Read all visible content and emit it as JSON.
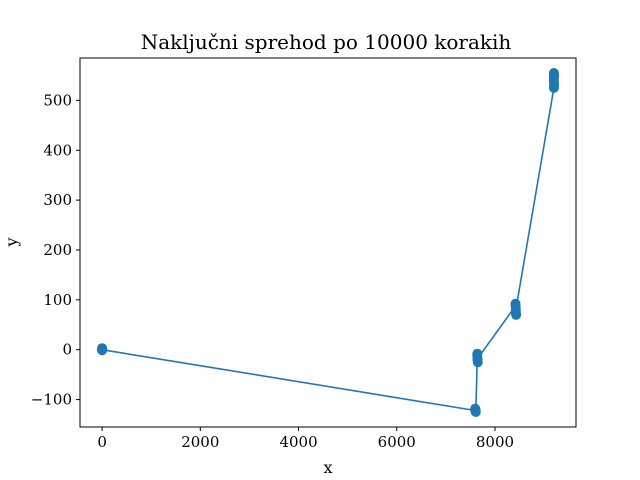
{
  "chart_data": {
    "type": "line",
    "title": "Naključni sprehod po 10000 korakih",
    "xlabel": "x",
    "ylabel": "y",
    "xlim": [
      -450,
      9650
    ],
    "ylim": [
      -155,
      585
    ],
    "xticks": [
      0,
      2000,
      4000,
      6000,
      8000
    ],
    "yticks": [
      -100,
      0,
      100,
      200,
      300,
      400,
      500
    ],
    "xtick_labels": [
      "0",
      "2000",
      "4000",
      "6000",
      "8000"
    ],
    "ytick_labels": [
      "−100",
      "0",
      "100",
      "200",
      "300",
      "400",
      "500"
    ],
    "grid": false,
    "marker": "circle",
    "color": "#1f77b4",
    "x": [
      0,
      0,
      2,
      -2,
      0,
      1,
      7600,
      7605,
      7598,
      7610,
      7640,
      7645,
      7640,
      7650,
      7645,
      8420,
      8425,
      8418,
      8430,
      8425,
      9200,
      9205,
      9198,
      9202,
      9200,
      9205,
      9200,
      9198,
      9203
    ],
    "y": [
      0,
      2,
      -1,
      1,
      3,
      0,
      -122,
      -120,
      -118,
      -125,
      -12,
      -20,
      -8,
      -25,
      -18,
      88,
      75,
      92,
      70,
      80,
      525,
      530,
      540,
      535,
      545,
      550,
      555,
      548,
      552
    ]
  }
}
